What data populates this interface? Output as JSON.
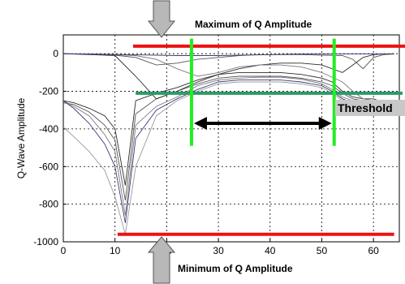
{
  "chart_data": {
    "type": "line",
    "title": "",
    "xlabel": "",
    "ylabel": "Q-Wave Amplitude",
    "xlim": [
      0,
      65
    ],
    "ylim": [
      -1000,
      100
    ],
    "xticks": [
      0,
      10,
      20,
      30,
      40,
      50,
      60
    ],
    "yticks": [
      0,
      -200,
      -400,
      -600,
      -800,
      -1000
    ],
    "grid": true,
    "legend": "none",
    "colors": {
      "max_line": "#ee1111",
      "min_line": "#ee1111",
      "threshold_line": "#2e9a66",
      "vertical_markers": "#22ee22",
      "series": [
        "#2a2a2a",
        "#555555",
        "#7a7a7a",
        "#3a3a7a",
        "#9a9a9a"
      ]
    },
    "series": [
      {
        "x": [
          0,
          2,
          5,
          8,
          10,
          12,
          14,
          18,
          22,
          26,
          30,
          34,
          38,
          42,
          46,
          50,
          52,
          54,
          56,
          58,
          60,
          62,
          64
        ],
        "y": [
          -250,
          -260,
          -290,
          -330,
          -400,
          -700,
          -250,
          -210,
          -180,
          -140,
          -110,
          -100,
          -100,
          -100,
          -110,
          -130,
          -150,
          -200,
          -230,
          -240,
          -240,
          -260,
          -270
        ]
      },
      {
        "x": [
          0,
          2,
          5,
          8,
          10,
          12,
          14,
          18,
          22,
          26,
          30,
          34,
          38,
          42,
          46,
          50,
          52,
          54,
          56,
          58,
          60,
          62,
          64
        ],
        "y": [
          -260,
          -270,
          -310,
          -380,
          -460,
          -780,
          -320,
          -240,
          -200,
          -160,
          -130,
          -120,
          -120,
          -120,
          -130,
          -150,
          -170,
          -210,
          -240,
          -250,
          -250,
          -260,
          -280
        ]
      },
      {
        "x": [
          0,
          2,
          5,
          8,
          10,
          12,
          14,
          18,
          22,
          26,
          30,
          34,
          38,
          42,
          46,
          50,
          52,
          54,
          56,
          58,
          60,
          62,
          64
        ],
        "y": [
          -250,
          -280,
          -330,
          -430,
          -520,
          -860,
          -380,
          -280,
          -230,
          -170,
          -140,
          -130,
          -125,
          -125,
          -135,
          -160,
          -190,
          -230,
          -250,
          -260,
          -260,
          -270,
          -280
        ]
      },
      {
        "x": [
          0,
          2,
          5,
          8,
          10,
          12,
          14,
          18,
          22,
          26,
          30,
          34,
          38,
          42,
          46,
          50,
          52,
          54,
          56,
          58,
          60,
          62,
          64
        ],
        "y": [
          -250,
          -290,
          -370,
          -480,
          -600,
          -900,
          -450,
          -300,
          -240,
          -190,
          -150,
          -140,
          -140,
          -140,
          -150,
          -170,
          -200,
          -240,
          -260,
          -270,
          -270,
          -270,
          -280
        ]
      },
      {
        "x": [
          0,
          2,
          5,
          8,
          10,
          12,
          14,
          18,
          22,
          26,
          30,
          34,
          38,
          42,
          46,
          50,
          52,
          54,
          56,
          58,
          60,
          62,
          64
        ],
        "y": [
          -390,
          -440,
          -520,
          -620,
          -760,
          -960,
          -600,
          -330,
          -250,
          -200,
          -160,
          -150,
          -150,
          -150,
          -160,
          -180,
          -210,
          -250,
          -270,
          -270,
          -270,
          -280,
          -290
        ]
      },
      {
        "x": [
          0,
          5,
          10,
          14,
          18,
          22,
          26,
          30,
          34,
          38,
          42,
          46,
          50,
          54,
          56,
          58,
          60,
          62,
          64
        ],
        "y": [
          0,
          -5,
          -10,
          -120,
          -240,
          -200,
          -150,
          -110,
          -80,
          -60,
          -50,
          -50,
          -60,
          -100,
          -60,
          -20,
          -5,
          -2,
          0
        ]
      },
      {
        "x": [
          0,
          5,
          10,
          14,
          18,
          22,
          26,
          30,
          34,
          38,
          42,
          46,
          50,
          54,
          56,
          58,
          60,
          62,
          64
        ],
        "y": [
          0,
          -3,
          -8,
          -20,
          -60,
          -50,
          -30,
          -20,
          -10,
          -5,
          -5,
          -5,
          -8,
          -10,
          -30,
          -80,
          -20,
          -5,
          -2
        ]
      },
      {
        "x": [
          0,
          5,
          10,
          14,
          18,
          22,
          26,
          30,
          34,
          38,
          42,
          46,
          50,
          54,
          56,
          58,
          60,
          62,
          64
        ],
        "y": [
          0,
          -2,
          -5,
          -10,
          -30,
          -80,
          -120,
          -100,
          -70,
          -60,
          -60,
          -70,
          -100,
          -150,
          -200,
          -240,
          -250,
          -260,
          -270
        ]
      },
      {
        "x": [
          0,
          5,
          10,
          14,
          18,
          22,
          26,
          30,
          34,
          38,
          42,
          46,
          50,
          54,
          56,
          58,
          60,
          62,
          64
        ],
        "y": [
          0,
          -2,
          -4,
          -6,
          -8,
          -10,
          -10,
          -10,
          -8,
          -6,
          -4,
          -2,
          -2,
          -2,
          -2,
          -2,
          -2,
          -2,
          -2
        ]
      }
    ]
  },
  "annotations": {
    "maximum_label": "Maximum  of Q Amplitude",
    "minimum_label": "Minimum of  Q  Amplitude",
    "threshold_label": "Threshold"
  },
  "reference_values": {
    "maximum_y": 40,
    "minimum_y": -960,
    "threshold_y": -210,
    "marker_x_left": 24.8,
    "marker_x_right": 52.4,
    "arrow_y": -370
  }
}
